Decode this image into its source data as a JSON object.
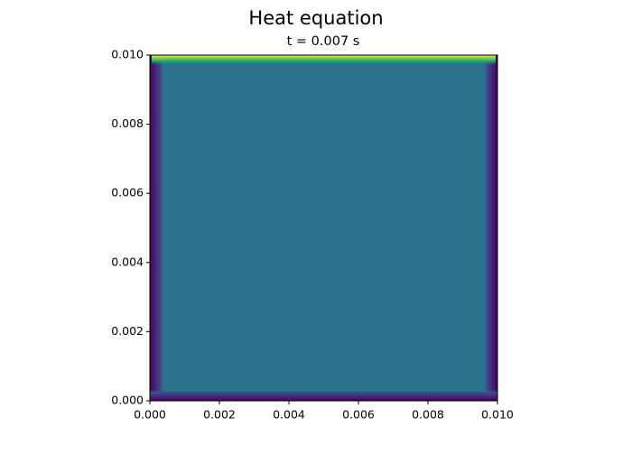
{
  "chart_data": {
    "type": "heatmap",
    "title": "Heat equation",
    "subtitle": "t = 0.007 s",
    "xlim": [
      0,
      0.01
    ],
    "ylim": [
      0,
      0.01
    ],
    "xticks": [
      {
        "value": 0,
        "label": "0.000"
      },
      {
        "value": 0.002,
        "label": "0.002"
      },
      {
        "value": 0.004,
        "label": "0.004"
      },
      {
        "value": 0.006,
        "label": "0.006"
      },
      {
        "value": 0.008,
        "label": "0.008"
      },
      {
        "value": 0.01,
        "label": "0.010"
      }
    ],
    "yticks": [
      {
        "value": 0,
        "label": "0.000"
      },
      {
        "value": 0.002,
        "label": "0.002"
      },
      {
        "value": 0.004,
        "label": "0.004"
      },
      {
        "value": 0.006,
        "label": "0.006"
      },
      {
        "value": 0.008,
        "label": "0.008"
      },
      {
        "value": 0.01,
        "label": "0.010"
      }
    ]
  }
}
